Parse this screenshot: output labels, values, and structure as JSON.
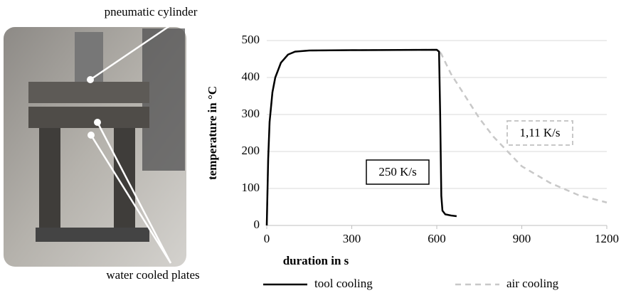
{
  "photo": {
    "labels": [
      "pneumatic cylinder",
      "water cooled plates"
    ]
  },
  "chart_data": {
    "type": "line",
    "xlabel": "duration in s",
    "ylabel": "temperature in °C",
    "xlim": [
      0,
      1200
    ],
    "xticks": [
      0,
      300,
      600,
      900,
      1200
    ],
    "ylim": [
      0,
      500
    ],
    "yticks": [
      0,
      100,
      200,
      300,
      400,
      500
    ],
    "grid": true,
    "legend": "bottom",
    "annotations": [
      "250 K/s",
      "1,11 K/s"
    ],
    "series": [
      {
        "name": "tool cooling",
        "color": "#000000",
        "dash": false,
        "x": [
          0,
          5,
          10,
          20,
          30,
          50,
          75,
          100,
          150,
          300,
          600,
          608,
          612,
          616,
          620,
          630,
          650,
          670
        ],
        "values": [
          0,
          180,
          280,
          360,
          400,
          440,
          462,
          470,
          473,
          474,
          475,
          470,
          300,
          80,
          40,
          30,
          27,
          25
        ]
      },
      {
        "name": "air cooling",
        "color": "#c8c8c8",
        "dash": true,
        "x": [
          0,
          5,
          10,
          20,
          30,
          50,
          75,
          100,
          150,
          300,
          600,
          615,
          650,
          700,
          750,
          800,
          900,
          1000,
          1100,
          1200
        ],
        "values": [
          0,
          180,
          280,
          360,
          400,
          440,
          462,
          470,
          473,
          474,
          475,
          465,
          410,
          350,
          290,
          240,
          160,
          115,
          82,
          62
        ]
      }
    ]
  }
}
